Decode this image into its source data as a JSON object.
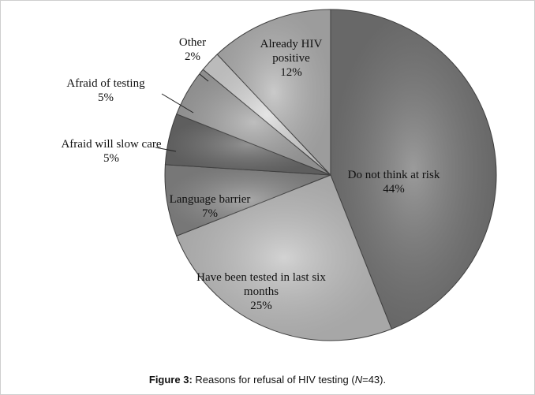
{
  "chart_data": {
    "type": "pie",
    "categories": [
      "Do not think at risk",
      "Have been tested in last six months",
      "Language barrier",
      "Afraid will slow care",
      "Afraid of testing",
      "Other",
      "Already HIV positive"
    ],
    "values": [
      44,
      25,
      7,
      5,
      5,
      2,
      12
    ],
    "value_labels": [
      "44%",
      "25%",
      "7%",
      "5%",
      "5%",
      "2%",
      "12%"
    ],
    "colors": [
      "#7a7a7a",
      "#c4c4c4",
      "#8c8c8c",
      "#6e6e6e",
      "#a8a8a8",
      "#dcdcdc",
      "#b8b8b8"
    ],
    "caption": {
      "label": "Figure 3:",
      "text": " Reasons for refusal of HIV testing (",
      "italic": "N",
      "end": "=43)."
    }
  }
}
